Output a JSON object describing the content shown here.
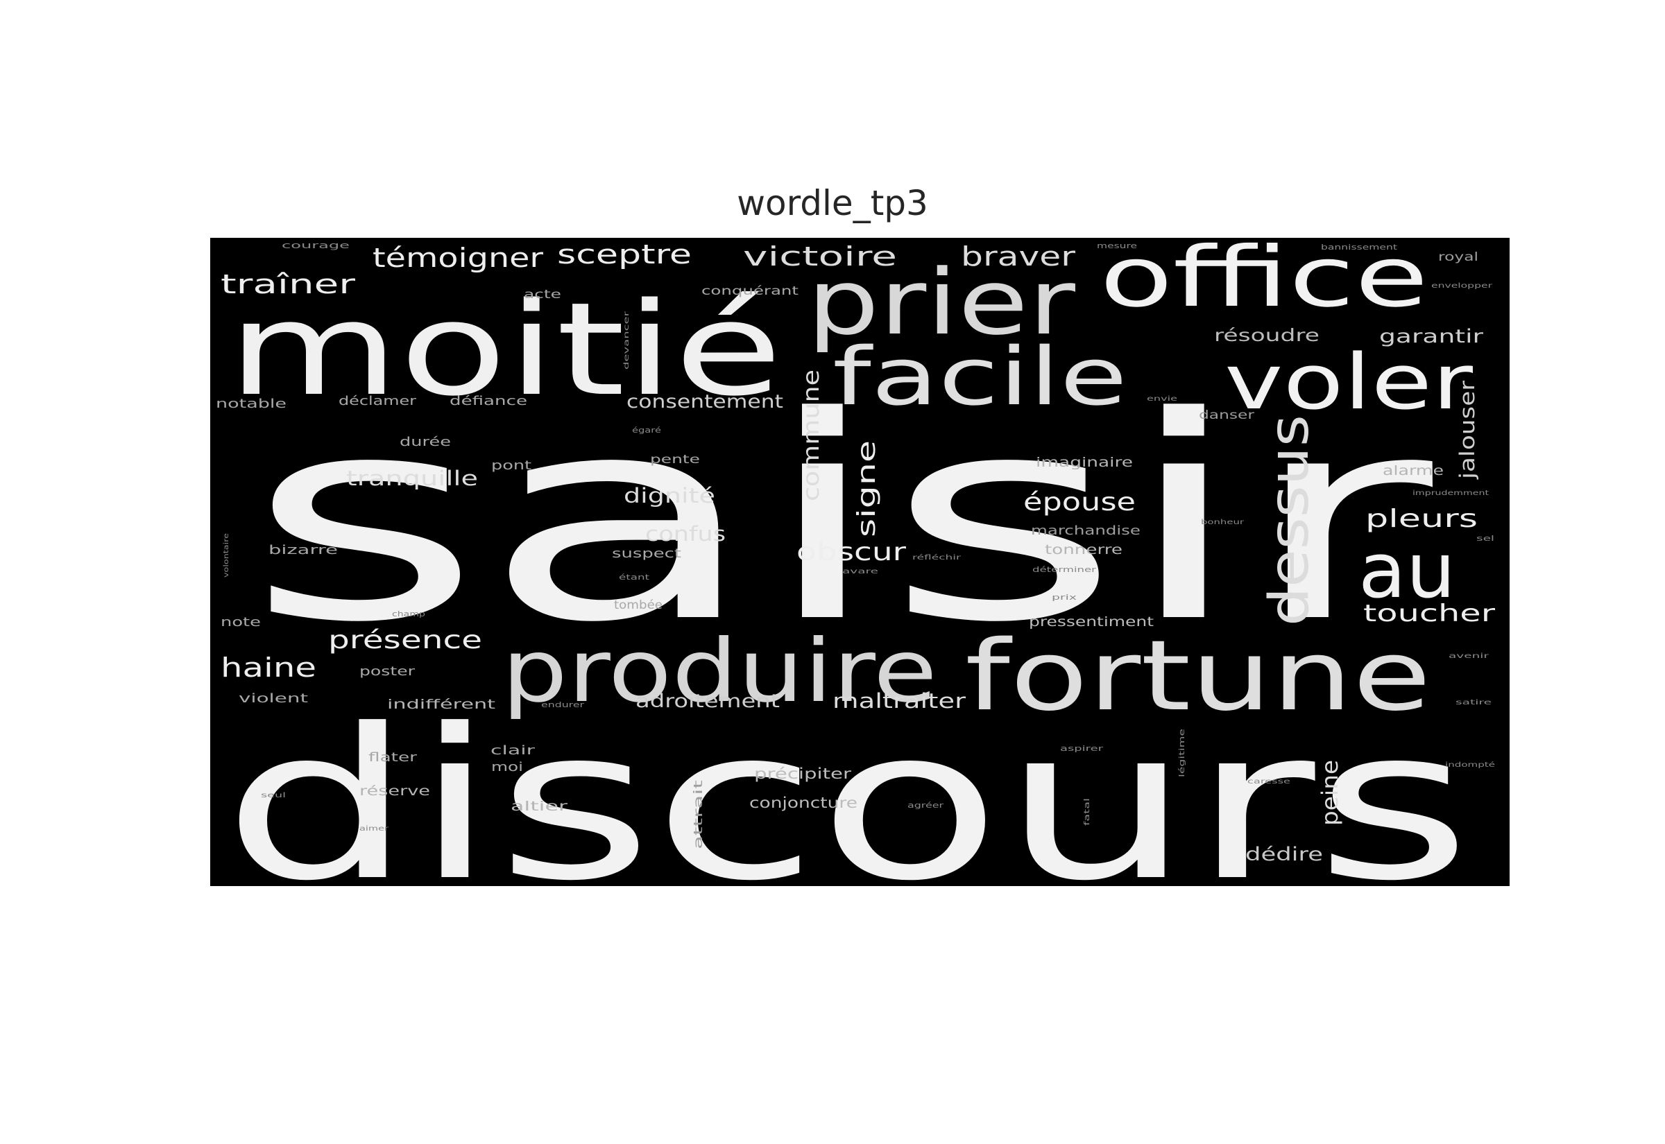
{
  "figure": {
    "title": "wordle_tp3",
    "background_color": "#000000",
    "text_color": "#efefef"
  },
  "words": {
    "saisir": "saisir",
    "discours": "discours",
    "moitie": "moitié",
    "office": "office",
    "prier": "prier",
    "facile": "facile",
    "voler": "voler",
    "fortune": "fortune",
    "produire": "produire",
    "au": "au",
    "dessus": "dessus",
    "temoigner": "témoigner",
    "sceptre": "sceptre",
    "victoire": "victoire",
    "braver": "braver",
    "trainer": "traîner",
    "commune": "commune",
    "signe": "signe",
    "obscur": "obscur",
    "epouse": "épouse",
    "pleurs": "pleurs",
    "toucher": "toucher",
    "presence": "présence",
    "haine": "haine",
    "consentement": "consentement",
    "tranquille": "tranquille",
    "dignite": "dignité",
    "confus": "confus",
    "adroitement": "adroitement",
    "maltraiter": "maltraiter",
    "peine": "peine",
    "jalouser": "jalouser",
    "resoudre": "résoudre",
    "garantir": "garantir",
    "dedire": "dédire",
    "pressentiment": "pressentiment",
    "precipiter": "précipiter",
    "conjoncture": "conjoncture",
    "imaginaire": "imaginaire",
    "marchandise": "marchandise",
    "tonnerre": "tonnerre",
    "alarme": "alarme",
    "conquerant": "conquérant",
    "acte": "acte",
    "declamer": "déclamer",
    "defiance": "défiance",
    "notable": "notable",
    "duree": "durée",
    "pont": "pont",
    "pente": "pente",
    "bizarre": "bizarre",
    "suspect": "suspect",
    "note": "note",
    "tombee": "tombée",
    "poster": "poster",
    "violent": "violent",
    "indifferent": "indifférent",
    "flater": "flater",
    "clair": "clair",
    "moi": "moi",
    "reserve": "réserve",
    "altier": "altier",
    "attrait": "attrait",
    "danser": "danser",
    "royal": "royal",
    "courage": "courage",
    "mesure": "mesure",
    "bannissement": "bannissement",
    "envelopper": "envelopper",
    "envie": "envie",
    "imprudemment": "imprudemment",
    "bonheur": "bonheur",
    "sel": "sel",
    "egare": "égaré",
    "reflechir": "réfléchir",
    "determiner": "déterminer",
    "prix": "prix",
    "champ": "champ",
    "endurer": "endurer",
    "aspirer": "aspirer",
    "legitime": "légitime",
    "caresse": "caresse",
    "agreer": "agréer",
    "fatal": "fatal",
    "avenir": "avenir",
    "satire": "satire",
    "indompte": "indompté",
    "aimer": "aimer",
    "seul": "seul",
    "volontaire": "volontaire",
    "devancer": "devancer",
    "etant": "étant",
    "avare": "avare"
  }
}
